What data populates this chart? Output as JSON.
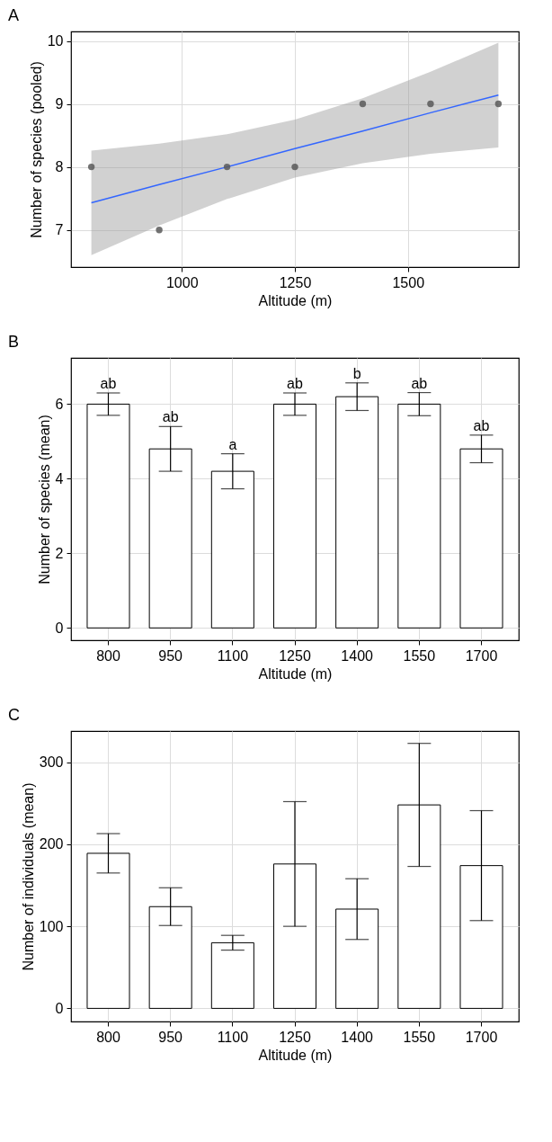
{
  "chart_data": [
    {
      "type": "scatter",
      "title": "A",
      "xlabel": "Altitude (m)",
      "ylabel": "Number of species (pooled)",
      "xlim": [
        755,
        1745
      ],
      "xticks": [
        1000,
        1250,
        1500
      ],
      "ylim": [
        6.41,
        10.15
      ],
      "yticks": [
        7,
        8,
        9,
        10
      ],
      "grid": true,
      "series": [
        {
          "type": "scatter",
          "marker": "circle",
          "color": "#595959",
          "x": [
            800,
            950,
            1100,
            1250,
            1400,
            1550,
            1700
          ],
          "values": [
            8,
            7,
            8,
            8,
            9,
            9,
            9
          ]
        },
        {
          "type": "line",
          "marker": "none",
          "line_style": "solid",
          "color": "#3366ff",
          "x": [
            800,
            950,
            1100,
            1250,
            1400,
            1550,
            1700
          ],
          "values": [
            7.43,
            7.72,
            8.0,
            8.29,
            8.57,
            8.86,
            9.14
          ],
          "lower": [
            6.6,
            7.07,
            7.49,
            7.83,
            8.06,
            8.21,
            8.31
          ],
          "upper": [
            8.26,
            8.37,
            8.52,
            8.75,
            9.09,
            9.51,
            9.97
          ]
        }
      ]
    },
    {
      "type": "bar",
      "title": "B",
      "xlabel": "Altitude (m)",
      "ylabel": "Number of species (mean)",
      "categories": [
        "800",
        "950",
        "1100",
        "1250",
        "1400",
        "1550",
        "1700"
      ],
      "values": [
        6,
        4.8,
        4.2,
        6,
        6.2,
        6,
        4.8
      ],
      "errors": [
        0.3,
        0.6,
        0.47,
        0.3,
        0.37,
        0.31,
        0.37
      ],
      "color": "#ffffff",
      "ylim": [
        -0.33,
        7.24
      ],
      "yticks": [
        0,
        2,
        4,
        6
      ],
      "grid": true,
      "annotations": [
        {
          "text": "ab",
          "x": "800",
          "y": 6.3
        },
        {
          "text": "ab",
          "x": "950",
          "y": 5.4
        },
        {
          "text": "a",
          "x": "1100",
          "y": 4.67
        },
        {
          "text": "ab",
          "x": "1250",
          "y": 6.3
        },
        {
          "text": "b",
          "x": "1400",
          "y": 6.57
        },
        {
          "text": "ab",
          "x": "1550",
          "y": 6.31
        },
        {
          "text": "ab",
          "x": "1700",
          "y": 5.17
        }
      ]
    },
    {
      "type": "bar",
      "title": "C",
      "xlabel": "Altitude (m)",
      "ylabel": "Number of individuals (mean)",
      "categories": [
        "800",
        "950",
        "1100",
        "1250",
        "1400",
        "1550",
        "1700"
      ],
      "values": [
        189,
        124,
        80,
        176,
        121,
        248,
        174
      ],
      "errors": [
        24,
        23,
        9,
        76,
        37,
        75,
        67
      ],
      "color": "#ffffff",
      "ylim": [
        -16,
        338
      ],
      "yticks": [
        0,
        100,
        200,
        300
      ],
      "grid": true
    }
  ]
}
